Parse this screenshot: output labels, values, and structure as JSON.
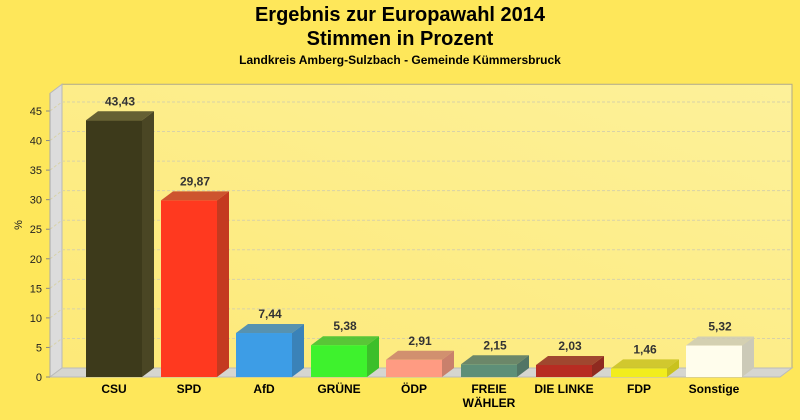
{
  "chart_data": {
    "type": "bar",
    "title": "Ergebnis zur Europawahl 2014",
    "subtitle": "Stimmen in Prozent",
    "subtitle2": "Landkreis Amberg-Sulzbach - Gemeinde Kümmersbruck",
    "xlabel": "",
    "ylabel": "%",
    "ylim": [
      0,
      48
    ],
    "yticks": [
      0,
      5,
      10,
      15,
      20,
      25,
      30,
      35,
      40,
      45
    ],
    "grid": true,
    "categories": [
      "CSU",
      "SPD",
      "AfD",
      "GRÜNE",
      "ÖDP",
      "FREIE WÄHLER",
      "DIE LINKE",
      "FDP",
      "Sonstige"
    ],
    "category_lines": [
      [
        "CSU"
      ],
      [
        "SPD"
      ],
      [
        "AfD"
      ],
      [
        "GRÜNE"
      ],
      [
        "ÖDP"
      ],
      [
        "FREIE",
        "WÄHLER"
      ],
      [
        "DIE LINKE"
      ],
      [
        "FDP"
      ],
      [
        "Sonstige"
      ]
    ],
    "values": [
      43.43,
      29.87,
      7.44,
      5.38,
      2.91,
      2.15,
      2.03,
      1.46,
      5.32
    ],
    "value_labels": [
      "43,43",
      "29,87",
      "7,44",
      "5,38",
      "2,91",
      "2,15",
      "2,03",
      "1,46",
      "5,32"
    ],
    "colors": [
      "#3d3a1b",
      "#ff391f",
      "#3d9de6",
      "#3ef22d",
      "#ff9b82",
      "#5e8f78",
      "#b72c22",
      "#f2ed1d",
      "#fffdec"
    ],
    "side_colors": [
      "#4a4624",
      "#c43a20",
      "#3a82b8",
      "#3cbf2a",
      "#c9806c",
      "#527565",
      "#8f2a20",
      "#c9c21e",
      "#cccab8"
    ]
  }
}
